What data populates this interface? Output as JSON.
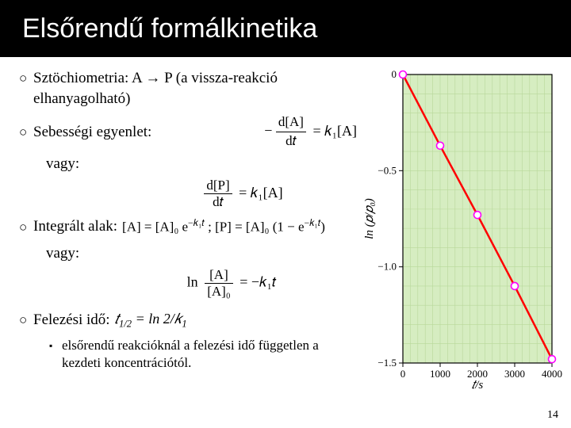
{
  "title": "Elsőrendű formálkinetika",
  "bullets": {
    "stoich": "Sztöchiometria: A → P (a vissza-reakció elhanyagolható)",
    "rate_label": "Sebességi egyenlet:",
    "vagy": "vagy:",
    "int_label": "Integrált alak:",
    "half_label": "Felezési idő:",
    "sub": "elsőrendű reakcióknál a felezési idő független a kezdeti koncentrációtól."
  },
  "equations": {
    "rate1_lhs_num": "d[A]",
    "rate1_lhs_den": "d𝑡",
    "rate1_rhs": "= 𝑘₁[A]",
    "rate1_neg": "−",
    "rate2_lhs_num": "d[P]",
    "rate2_lhs_den": "d𝑡",
    "rate2_rhs": "= 𝑘₁[A]",
    "int1": "[A] = [A]₀ e",
    "int1_exp": "−𝑘₁𝑡",
    "int_sep": " ; ",
    "int2": "[P] = [A]₀ (1 − e",
    "int2_exp": "−𝑘₁𝑡",
    "int2_close": ")",
    "ln_lhs_num": "[A]",
    "ln_lhs_den": "[A]₀",
    "ln_pref": "ln",
    "ln_rhs": "= −𝑘₁𝑡",
    "half_eq": "𝑡",
    "half_sub": "1/2",
    "half_rhs_a": " = ln 2/",
    "half_rhs_b": "𝑘",
    "half_rhs_c": "1"
  },
  "page_number": "14",
  "chart": {
    "type": "line",
    "xlabel": "𝑡/s",
    "ylabel": "ln (𝑝/𝑝₀)",
    "xlim": [
      0,
      4000
    ],
    "ylim": [
      -1.5,
      0
    ],
    "xticks": [
      0,
      1000,
      2000,
      3000,
      4000
    ],
    "yticks": [
      0,
      -0.5,
      -1.0,
      -1.5
    ],
    "ytick_labels": [
      "0",
      "−0.5",
      "−1.0",
      "−1.5"
    ],
    "line_color": "#ff0000",
    "line_width": 2.5,
    "marker_color_fill": "#ffffff",
    "marker_color_stroke": "#ff00ff",
    "marker_radius": 4.5,
    "background_color": "#d6edc1",
    "grid_minor_color": "#b8d89a",
    "axis_color": "#000000",
    "tick_fontsize": 13,
    "label_fontsize": 15,
    "data_points": [
      {
        "x": 0,
        "y": 0.0
      },
      {
        "x": 1000,
        "y": -0.37
      },
      {
        "x": 2000,
        "y": -0.73
      },
      {
        "x": 3000,
        "y": -1.1
      },
      {
        "x": 4000,
        "y": -1.48
      }
    ]
  }
}
